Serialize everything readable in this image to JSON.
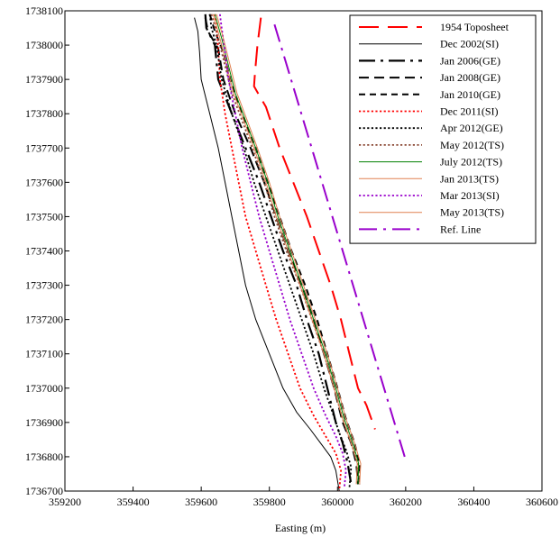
{
  "chart_data": {
    "type": "line",
    "title": "",
    "xlabel": "Easting (m)",
    "ylabel": "",
    "xlim": [
      359200,
      360600
    ],
    "ylim": [
      1736700,
      1738100
    ],
    "x_ticks": [
      "359200",
      "359400",
      "359600",
      "359800",
      "360000",
      "360200",
      "360400",
      "360600"
    ],
    "y_ticks": [
      "1736700",
      "1736800",
      "1736900",
      "1737000",
      "1737100",
      "1737200",
      "1737300",
      "1737400",
      "1737500",
      "1737600",
      "1737700",
      "1737800",
      "1737900",
      "1738000",
      "1738100"
    ],
    "grid": false,
    "legend_position": "top-right",
    "series": [
      {
        "name": "1954 Toposheet",
        "color": "#ff0000",
        "dash": "long-dash",
        "points": [
          [
            359775,
            1738080
          ],
          [
            359765,
            1738000
          ],
          [
            359758,
            1737920
          ],
          [
            359755,
            1737880
          ],
          [
            359790,
            1737820
          ],
          [
            359830,
            1737700
          ],
          [
            359870,
            1737600
          ],
          [
            359910,
            1737500
          ],
          [
            359945,
            1737400
          ],
          [
            359980,
            1737300
          ],
          [
            360010,
            1737200
          ],
          [
            360035,
            1737100
          ],
          [
            360060,
            1737000
          ],
          [
            360085,
            1736950
          ],
          [
            360110,
            1736880
          ]
        ]
      },
      {
        "name": "Dec 2002(SI)",
        "color": "#000000",
        "dash": "solid",
        "points": [
          [
            359580,
            1738080
          ],
          [
            359590,
            1738040
          ],
          [
            359595,
            1737980
          ],
          [
            359600,
            1737900
          ],
          [
            359625,
            1737800
          ],
          [
            359650,
            1737700
          ],
          [
            359670,
            1737600
          ],
          [
            359690,
            1737500
          ],
          [
            359710,
            1737400
          ],
          [
            359730,
            1737300
          ],
          [
            359760,
            1737200
          ],
          [
            359800,
            1737100
          ],
          [
            359840,
            1737000
          ],
          [
            359880,
            1736930
          ],
          [
            359920,
            1736880
          ],
          [
            359950,
            1736840
          ],
          [
            359980,
            1736800
          ],
          [
            359995,
            1736760
          ],
          [
            360000,
            1736730
          ],
          [
            360005,
            1736700
          ]
        ]
      },
      {
        "name": "Jan 2006(GE)",
        "color": "#000000",
        "dash": "long-dash-dot",
        "points": [
          [
            359612,
            1738090
          ],
          [
            359615,
            1738050
          ],
          [
            359640,
            1738000
          ],
          [
            359650,
            1737900
          ],
          [
            359690,
            1737800
          ],
          [
            359730,
            1737700
          ],
          [
            359770,
            1737600
          ],
          [
            359805,
            1737500
          ],
          [
            359840,
            1737400
          ],
          [
            359880,
            1737300
          ],
          [
            359910,
            1737200
          ],
          [
            359945,
            1737100
          ],
          [
            359970,
            1737000
          ],
          [
            359995,
            1736900
          ],
          [
            360015,
            1736840
          ],
          [
            360030,
            1736780
          ],
          [
            360040,
            1736720
          ]
        ]
      },
      {
        "name": "Jan 2008(GE)",
        "color": "#000000",
        "dash": "dash",
        "points": [
          [
            359612,
            1738080
          ],
          [
            359620,
            1738040
          ],
          [
            359650,
            1737990
          ],
          [
            359665,
            1737900
          ],
          [
            359700,
            1737800
          ],
          [
            359745,
            1737700
          ],
          [
            359785,
            1737600
          ],
          [
            359820,
            1737500
          ],
          [
            359855,
            1737400
          ],
          [
            359895,
            1737300
          ],
          [
            359930,
            1737200
          ],
          [
            359960,
            1737100
          ],
          [
            359990,
            1737000
          ],
          [
            360015,
            1736900
          ],
          [
            360040,
            1736840
          ],
          [
            360055,
            1736780
          ],
          [
            360060,
            1736720
          ]
        ]
      },
      {
        "name": "Jan 2010(GE)",
        "color": "#000000",
        "dash": "short-dash",
        "points": [
          [
            359625,
            1738090
          ],
          [
            359640,
            1738040
          ],
          [
            359665,
            1737980
          ],
          [
            359685,
            1737900
          ],
          [
            359720,
            1737800
          ],
          [
            359760,
            1737700
          ],
          [
            359795,
            1737600
          ],
          [
            359830,
            1737500
          ],
          [
            359865,
            1737400
          ],
          [
            359905,
            1737300
          ],
          [
            359940,
            1737200
          ],
          [
            359970,
            1737100
          ],
          [
            360000,
            1737000
          ],
          [
            360025,
            1736910
          ],
          [
            360050,
            1736840
          ],
          [
            360065,
            1736780
          ],
          [
            360060,
            1736720
          ]
        ]
      },
      {
        "name": "Dec 2011(SI)",
        "color": "#ff0000",
        "dash": "dot",
        "points": [
          [
            359640,
            1738090
          ],
          [
            359645,
            1738050
          ],
          [
            359650,
            1737990
          ],
          [
            359655,
            1737900
          ],
          [
            359670,
            1737800
          ],
          [
            359690,
            1737700
          ],
          [
            359710,
            1737600
          ],
          [
            359730,
            1737500
          ],
          [
            359760,
            1737400
          ],
          [
            359790,
            1737300
          ],
          [
            359820,
            1737200
          ],
          [
            359855,
            1737100
          ],
          [
            359890,
            1737000
          ],
          [
            359930,
            1736920
          ],
          [
            359965,
            1736860
          ],
          [
            359995,
            1736810
          ],
          [
            360010,
            1736760
          ],
          [
            360005,
            1736700
          ]
        ]
      },
      {
        "name": "Apr 2012(GE)",
        "color": "#000000",
        "dash": "dot",
        "points": [
          [
            359625,
            1738090
          ],
          [
            359630,
            1738050
          ],
          [
            359645,
            1738000
          ],
          [
            359660,
            1737900
          ],
          [
            359690,
            1737800
          ],
          [
            359725,
            1737700
          ],
          [
            359755,
            1737600
          ],
          [
            359790,
            1737500
          ],
          [
            359825,
            1737400
          ],
          [
            359860,
            1737300
          ],
          [
            359895,
            1737200
          ],
          [
            359930,
            1737100
          ],
          [
            359960,
            1737000
          ],
          [
            359985,
            1736930
          ],
          [
            360005,
            1736870
          ],
          [
            360025,
            1736820
          ],
          [
            360040,
            1736770
          ],
          [
            360035,
            1736710
          ]
        ]
      },
      {
        "name": "May 2012(TS)",
        "color": "#8b4a36",
        "dash": "dot",
        "points": [
          [
            359630,
            1738090
          ],
          [
            359650,
            1738020
          ],
          [
            359670,
            1737940
          ],
          [
            359690,
            1737860
          ],
          [
            359720,
            1737780
          ],
          [
            359750,
            1737700
          ],
          [
            359785,
            1737600
          ],
          [
            359815,
            1737500
          ],
          [
            359850,
            1737400
          ],
          [
            359890,
            1737300
          ],
          [
            359925,
            1737200
          ],
          [
            359960,
            1737100
          ],
          [
            359990,
            1737000
          ],
          [
            360015,
            1736910
          ],
          [
            360040,
            1736840
          ],
          [
            360060,
            1736780
          ],
          [
            360065,
            1736720
          ]
        ]
      },
      {
        "name": "July 2012(TS)",
        "color": "#008000",
        "dash": "solid",
        "points": [
          [
            359640,
            1738090
          ],
          [
            359660,
            1738020
          ],
          [
            359680,
            1737940
          ],
          [
            359700,
            1737860
          ],
          [
            359730,
            1737780
          ],
          [
            359760,
            1737700
          ],
          [
            359795,
            1737600
          ],
          [
            359825,
            1737500
          ],
          [
            359860,
            1737400
          ],
          [
            359895,
            1737300
          ],
          [
            359930,
            1737200
          ],
          [
            359965,
            1737100
          ],
          [
            359995,
            1737000
          ],
          [
            360020,
            1736910
          ],
          [
            360045,
            1736840
          ],
          [
            360062,
            1736780
          ],
          [
            360060,
            1736720
          ]
        ]
      },
      {
        "name": "Jan 2013(TS)",
        "color": "#e08050",
        "dash": "solid",
        "points": [
          [
            359635,
            1738090
          ],
          [
            359655,
            1738020
          ],
          [
            359675,
            1737940
          ],
          [
            359695,
            1737860
          ],
          [
            359725,
            1737780
          ],
          [
            359755,
            1737700
          ],
          [
            359790,
            1737600
          ],
          [
            359820,
            1737500
          ],
          [
            359855,
            1737400
          ],
          [
            359890,
            1737300
          ],
          [
            359925,
            1737200
          ],
          [
            359960,
            1737100
          ],
          [
            359990,
            1737000
          ],
          [
            360015,
            1736910
          ],
          [
            360040,
            1736840
          ],
          [
            360058,
            1736780
          ],
          [
            360055,
            1736720
          ]
        ]
      },
      {
        "name": "Mar 2013(SI)",
        "color": "#9900cc",
        "dash": "dot",
        "points": [
          [
            359655,
            1738090
          ],
          [
            359660,
            1738050
          ],
          [
            359670,
            1737980
          ],
          [
            359680,
            1737900
          ],
          [
            359700,
            1737800
          ],
          [
            359720,
            1737700
          ],
          [
            359745,
            1737600
          ],
          [
            359770,
            1737500
          ],
          [
            359800,
            1737400
          ],
          [
            359830,
            1737300
          ],
          [
            359860,
            1737200
          ],
          [
            359895,
            1737100
          ],
          [
            359930,
            1737000
          ],
          [
            359965,
            1736920
          ],
          [
            359995,
            1736860
          ],
          [
            360015,
            1736810
          ],
          [
            360025,
            1736760
          ],
          [
            360020,
            1736710
          ]
        ]
      },
      {
        "name": "May 2013(TS)",
        "color": "#e08050",
        "dash": "solid",
        "points": [
          [
            359645,
            1738090
          ],
          [
            359665,
            1738020
          ],
          [
            359685,
            1737940
          ],
          [
            359705,
            1737860
          ],
          [
            359735,
            1737780
          ],
          [
            359765,
            1737700
          ],
          [
            359800,
            1737600
          ],
          [
            359830,
            1737500
          ],
          [
            359865,
            1737400
          ],
          [
            359900,
            1737300
          ],
          [
            359935,
            1737200
          ],
          [
            359970,
            1737100
          ],
          [
            360000,
            1737000
          ],
          [
            360025,
            1736910
          ],
          [
            360050,
            1736840
          ],
          [
            360068,
            1736780
          ],
          [
            360065,
            1736720
          ]
        ]
      },
      {
        "name": "Ref. Line",
        "color": "#9900cc",
        "dash": "dash-dot",
        "points": [
          [
            359815,
            1738060
          ],
          [
            360200,
            1736790
          ]
        ]
      }
    ]
  }
}
